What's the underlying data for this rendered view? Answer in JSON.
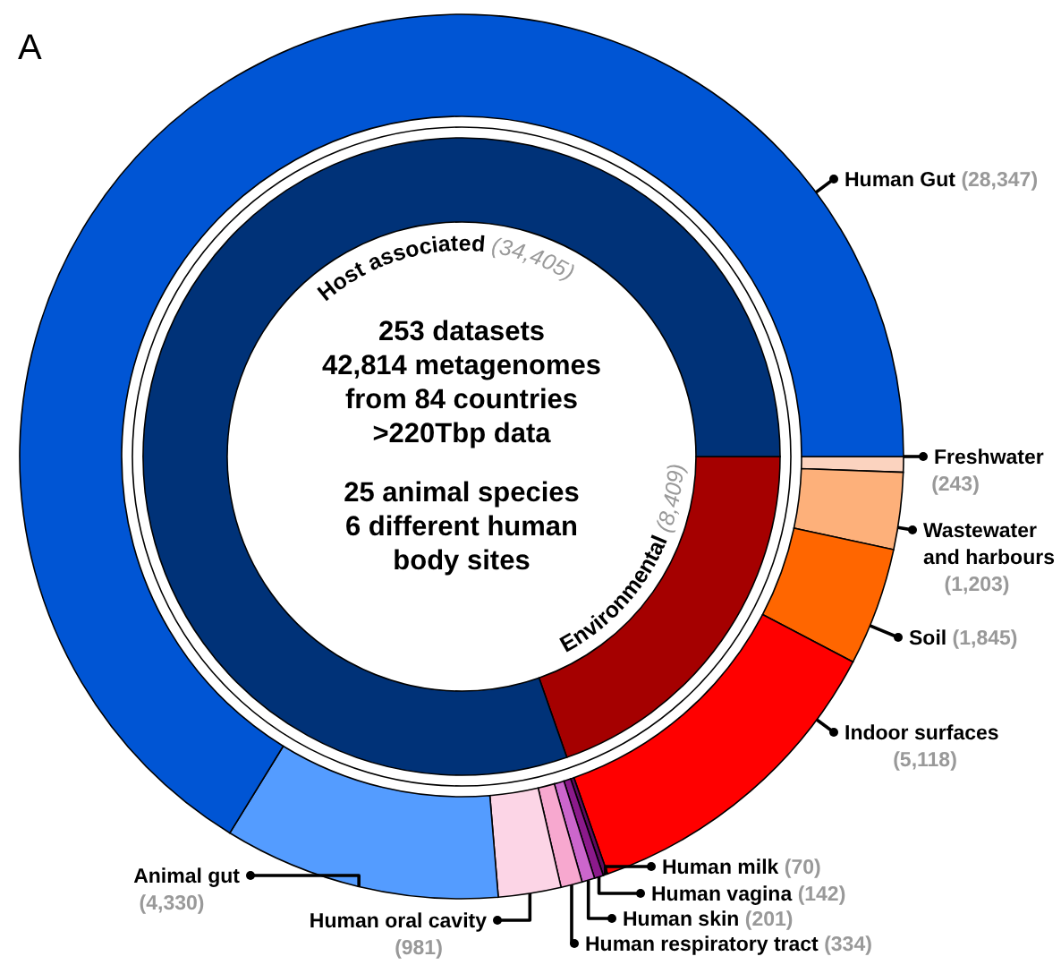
{
  "chart_data": [
    {
      "type": "donut",
      "categories": [
        "Environmental",
        "Host associated"
      ],
      "values": [
        8409,
        34405
      ],
      "colors": [
        "#a50000",
        "#003278"
      ],
      "value_labels": [
        "(8,409)",
        "(34,405)"
      ],
      "annotations": [
        "253 datasets\n42,814 metagenomes\nfrom 84 countries\n>220Tbp data",
        "25 animal species\n6 different human\nbody sites"
      ]
    },
    {
      "type": "donut",
      "title": "A",
      "categories": [
        "Freshwater",
        "Wastewater and harbours",
        "Soil",
        "Indoor surfaces",
        "Human milk",
        "Human vagina",
        "Human skin",
        "Human respiratory tract",
        "Human oral cavity",
        "Animal gut",
        "Human Gut"
      ],
      "values": [
        243,
        1203,
        1845,
        5118,
        70,
        142,
        201,
        334,
        981,
        4330,
        28347
      ],
      "colors": [
        "#fbd3bf",
        "#fdb07a",
        "#ff6600",
        "#ff0000",
        "#5e0a5e",
        "#8b1a8b",
        "#cc66cc",
        "#f7a8cf",
        "#fcd5e6",
        "#549cff",
        "#0055d4"
      ],
      "value_labels": [
        "(243)",
        "(1,203)",
        "(1,845)",
        "(5,118)",
        "(70)",
        "(142)",
        "(201)",
        "(334)",
        "(981)",
        "(4,330)",
        "(28,347)"
      ]
    }
  ]
}
